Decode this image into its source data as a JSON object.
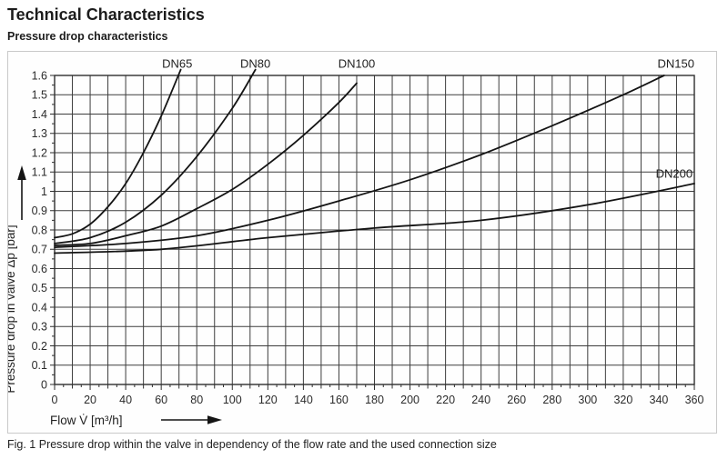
{
  "page": {
    "title": "Technical Characteristics",
    "subtitle": "Pressure drop characteristics",
    "caption": "Fig. 1 Pressure drop within the valve in dependency of the flow rate and the used connection size"
  },
  "chart_data": {
    "type": "line",
    "title": "",
    "xlabel": "Flow V̇ [m³/h]",
    "ylabel": "Pressure drop in valve Δp [bar]",
    "xlim": [
      0,
      360
    ],
    "ylim": [
      0,
      1.6
    ],
    "grid": true,
    "x_grid_step": 10,
    "y_grid_step": 0.1,
    "x_minor_tick_step": 5,
    "y_minor_tick_step": 0.05,
    "legend_position": "labels-on-curves",
    "x_ticks": [
      {
        "v": 0,
        "label": "0"
      },
      {
        "v": 20,
        "label": "20"
      },
      {
        "v": 40,
        "label": "40"
      },
      {
        "v": 60,
        "label": "60"
      },
      {
        "v": 80,
        "label": "80"
      },
      {
        "v": 100,
        "label": "100"
      },
      {
        "v": 120,
        "label": "120"
      },
      {
        "v": 140,
        "label": "140"
      },
      {
        "v": 160,
        "label": "160"
      },
      {
        "v": 180,
        "label": "180"
      },
      {
        "v": 200,
        "label": "200"
      },
      {
        "v": 220,
        "label": "220"
      },
      {
        "v": 240,
        "label": "240"
      },
      {
        "v": 260,
        "label": "260"
      },
      {
        "v": 280,
        "label": "280"
      },
      {
        "v": 300,
        "label": "300"
      },
      {
        "v": 320,
        "label": "320"
      },
      {
        "v": 340,
        "label": "340"
      },
      {
        "v": 360,
        "label": "360"
      }
    ],
    "y_ticks": [
      {
        "v": 0,
        "label": "0"
      },
      {
        "v": 0.1,
        "label": "0.1"
      },
      {
        "v": 0.2,
        "label": "0.2"
      },
      {
        "v": 0.3,
        "label": "0.3"
      },
      {
        "v": 0.4,
        "label": "0.4"
      },
      {
        "v": 0.5,
        "label": "0.5"
      },
      {
        "v": 0.6,
        "label": "0.6"
      },
      {
        "v": 0.7,
        "label": "0.7"
      },
      {
        "v": 0.8,
        "label": "0.8"
      },
      {
        "v": 0.9,
        "label": "0.9"
      },
      {
        "v": 1,
        "label": "1"
      },
      {
        "v": 1.1,
        "label": "1.1"
      },
      {
        "v": 1.2,
        "label": "1.2"
      },
      {
        "v": 1.3,
        "label": "1.3"
      },
      {
        "v": 1.4,
        "label": "1.4"
      },
      {
        "v": 1.5,
        "label": "1.5"
      },
      {
        "v": 1.6,
        "label": "1.6"
      }
    ],
    "series": [
      {
        "name": "DN65",
        "label_x": 69,
        "label_y": 1.64,
        "label_anchor": "middle",
        "points": [
          [
            0,
            0.76
          ],
          [
            10,
            0.78
          ],
          [
            20,
            0.83
          ],
          [
            30,
            0.92
          ],
          [
            40,
            1.04
          ],
          [
            50,
            1.2
          ],
          [
            60,
            1.39
          ],
          [
            71,
            1.63
          ]
        ]
      },
      {
        "name": "DN80",
        "label_x": 113,
        "label_y": 1.64,
        "label_anchor": "middle",
        "points": [
          [
            0,
            0.73
          ],
          [
            20,
            0.76
          ],
          [
            40,
            0.84
          ],
          [
            60,
            0.98
          ],
          [
            80,
            1.18
          ],
          [
            100,
            1.43
          ],
          [
            113,
            1.63
          ]
        ]
      },
      {
        "name": "DN100",
        "label_x": 170,
        "label_y": 1.64,
        "label_anchor": "middle",
        "points": [
          [
            0,
            0.72
          ],
          [
            20,
            0.73
          ],
          [
            40,
            0.77
          ],
          [
            60,
            0.82
          ],
          [
            80,
            0.91
          ],
          [
            100,
            1.01
          ],
          [
            120,
            1.14
          ],
          [
            140,
            1.29
          ],
          [
            160,
            1.46
          ],
          [
            170,
            1.56
          ]
        ]
      },
      {
        "name": "DN150",
        "label_x": 360,
        "label_y": 1.64,
        "label_anchor": "end",
        "points": [
          [
            0,
            0.71
          ],
          [
            40,
            0.73
          ],
          [
            80,
            0.77
          ],
          [
            120,
            0.85
          ],
          [
            160,
            0.95
          ],
          [
            200,
            1.06
          ],
          [
            240,
            1.19
          ],
          [
            280,
            1.34
          ],
          [
            320,
            1.5
          ],
          [
            343,
            1.6
          ]
        ]
      },
      {
        "name": "DN200",
        "label_x": 359,
        "label_y": 1.07,
        "label_anchor": "end",
        "points": [
          [
            0,
            0.68
          ],
          [
            60,
            0.7
          ],
          [
            120,
            0.76
          ],
          [
            180,
            0.81
          ],
          [
            240,
            0.85
          ],
          [
            300,
            0.93
          ],
          [
            360,
            1.04
          ]
        ]
      }
    ],
    "colors": {
      "curve": "#141414",
      "grid": "#3d3d3d",
      "frame": "#2f2f2f",
      "tick_text": "#2b2b2b",
      "label_text": "#222222",
      "panel_border": "#c9c9c9"
    }
  }
}
